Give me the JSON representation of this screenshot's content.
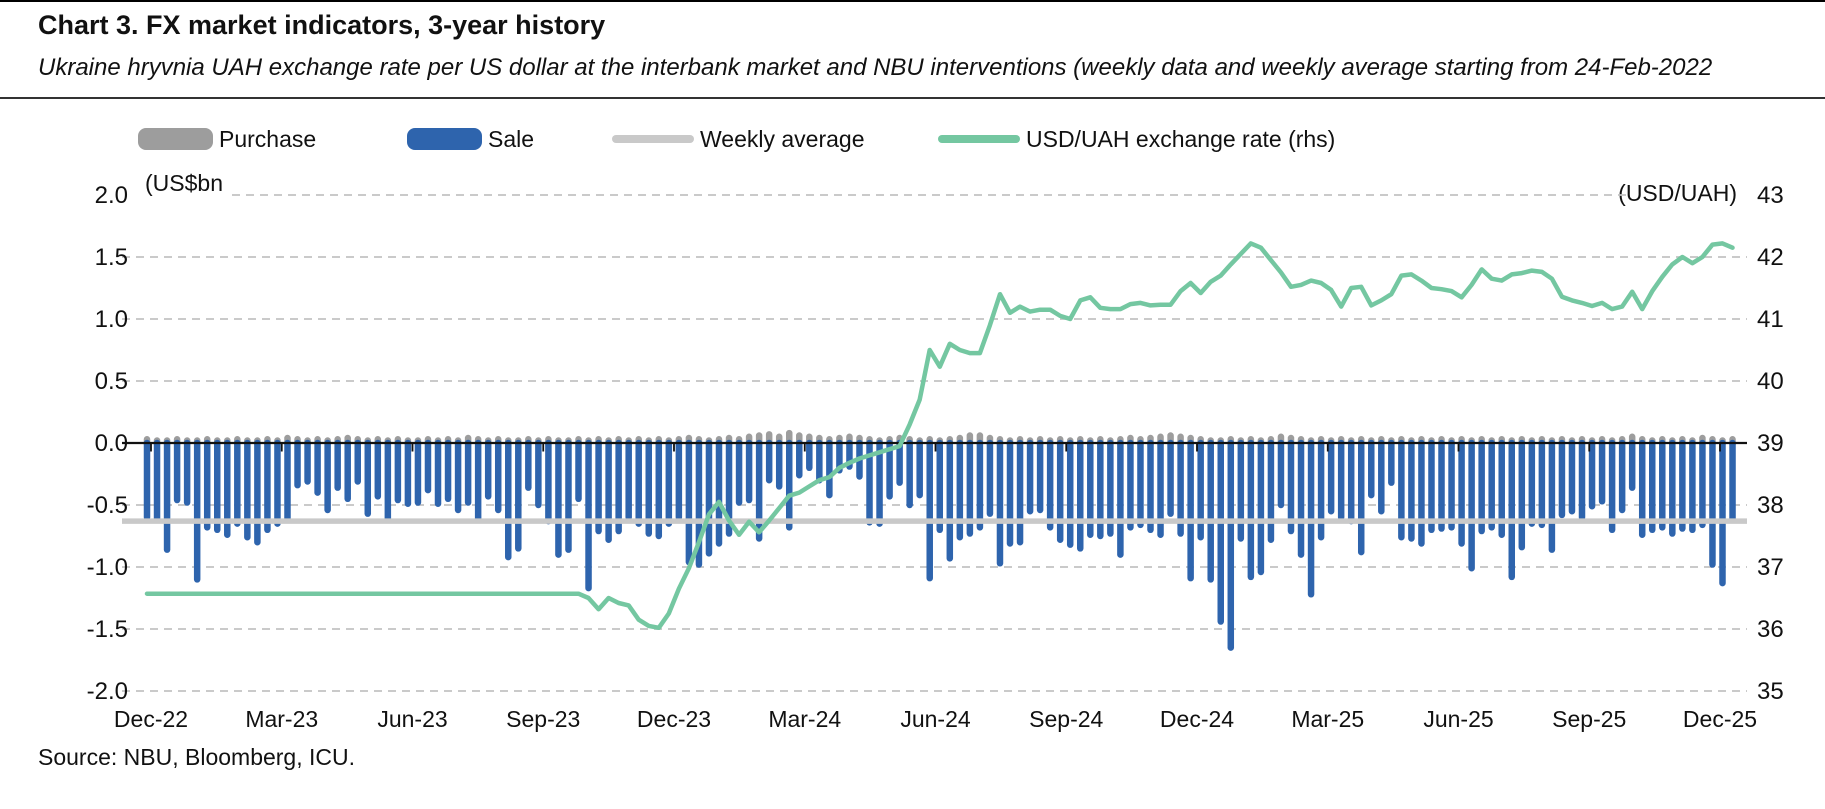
{
  "header": {
    "title": "Chart 3. FX market indicators, 3-year history",
    "subtitle": "Ukraine hryvnia UAH exchange rate per US dollar at the interbank market and NBU interventions (weekly data and weekly average starting from 24-Feb-2022"
  },
  "source": "Source: NBU, Bloomberg, ICU.",
  "legend": [
    {
      "label": "Purchase",
      "color": "#9d9d9d",
      "type": "bar"
    },
    {
      "label": "Sale",
      "color": "#2e64ad",
      "type": "bar"
    },
    {
      "label": "Weekly average",
      "color": "#c9c9c9",
      "type": "line"
    },
    {
      "label": "USD/UAH exchange rate (rhs)",
      "color": "#74c7a1",
      "type": "line"
    }
  ],
  "chart_data": {
    "type": "combo",
    "x_unit": "week",
    "x_start_label": "Dec-22",
    "x_end_label": "Dec-25",
    "x_quarter_labels": [
      "Dec-22",
      "Mar-23",
      "Jun-23",
      "Sep-23",
      "Dec-23",
      "Mar-24",
      "Jun-24",
      "Sep-24",
      "Dec-24",
      "Mar-25",
      "Jun-25",
      "Sep-25",
      "Dec-25"
    ],
    "grid": "horizontal-dashed",
    "left_axis": {
      "unit": "(US$bn",
      "min": -2.0,
      "max": 2.0,
      "ticks": [
        "2.0",
        "1.5",
        "1.0",
        "0.5",
        "0.0",
        "-0.5",
        "-1.0",
        "-1.5",
        "-2.0"
      ]
    },
    "right_axis": {
      "unit": "(USD/UAH)",
      "min": 35,
      "max": 43,
      "ticks": [
        "43",
        "42",
        "41",
        "40",
        "39",
        "38",
        "37",
        "36",
        "35"
      ]
    },
    "series": [
      {
        "name": "Purchase",
        "type": "bar",
        "axis": "left",
        "color": "#9d9d9d",
        "values": [
          0.03,
          0.02,
          0.02,
          0.03,
          0.02,
          0.02,
          0.03,
          0.02,
          0.02,
          0.03,
          0.02,
          0.02,
          0.03,
          0.02,
          0.04,
          0.03,
          0.02,
          0.03,
          0.02,
          0.03,
          0.04,
          0.03,
          0.02,
          0.03,
          0.02,
          0.03,
          0.02,
          0.02,
          0.03,
          0.02,
          0.03,
          0.02,
          0.04,
          0.03,
          0.02,
          0.03,
          0.02,
          0.02,
          0.03,
          0.02,
          0.03,
          0.02,
          0.02,
          0.03,
          0.02,
          0.03,
          0.02,
          0.03,
          0.02,
          0.03,
          0.02,
          0.03,
          0.02,
          0.03,
          0.04,
          0.03,
          0.02,
          0.03,
          0.04,
          0.03,
          0.05,
          0.06,
          0.07,
          0.05,
          0.08,
          0.06,
          0.05,
          0.04,
          0.03,
          0.04,
          0.05,
          0.04,
          0.03,
          0.02,
          0.03,
          0.04,
          0.03,
          0.02,
          0.03,
          0.02,
          0.03,
          0.04,
          0.06,
          0.06,
          0.04,
          0.03,
          0.02,
          0.03,
          0.02,
          0.03,
          0.02,
          0.03,
          0.02,
          0.03,
          0.02,
          0.03,
          0.02,
          0.03,
          0.04,
          0.03,
          0.04,
          0.05,
          0.06,
          0.05,
          0.04,
          0.03,
          0.02,
          0.02,
          0.03,
          0.02,
          0.03,
          0.02,
          0.03,
          0.05,
          0.04,
          0.03,
          0.02,
          0.03,
          0.02,
          0.03,
          0.02,
          0.03,
          0.02,
          0.03,
          0.02,
          0.03,
          0.02,
          0.03,
          0.02,
          0.03,
          0.02,
          0.03,
          0.02,
          0.03,
          0.02,
          0.03,
          0.02,
          0.03,
          0.02,
          0.03,
          0.02,
          0.03,
          0.02,
          0.03,
          0.02,
          0.03,
          0.02,
          0.03,
          0.05,
          0.03,
          0.02,
          0.03,
          0.02,
          0.03,
          0.02,
          0.04,
          0.03,
          0.02,
          0.03
        ]
      },
      {
        "name": "Sale",
        "type": "bar",
        "axis": "left",
        "color": "#2e64ad",
        "values": [
          -0.6,
          -0.62,
          -0.86,
          -0.46,
          -0.48,
          -1.1,
          -0.68,
          -0.7,
          -0.74,
          -0.65,
          -0.76,
          -0.8,
          -0.7,
          -0.65,
          -0.62,
          -0.34,
          -0.31,
          -0.4,
          -0.54,
          -0.36,
          -0.45,
          -0.31,
          -0.57,
          -0.43,
          -0.61,
          -0.46,
          -0.49,
          -0.48,
          -0.38,
          -0.49,
          -0.45,
          -0.54,
          -0.48,
          -0.62,
          -0.43,
          -0.54,
          -0.92,
          -0.85,
          -0.36,
          -0.5,
          -0.63,
          -0.9,
          -0.86,
          -0.45,
          -1.17,
          -0.71,
          -0.78,
          -0.71,
          -0.6,
          -0.65,
          -0.73,
          -0.75,
          -0.65,
          -0.6,
          -0.96,
          -0.98,
          -0.89,
          -0.81,
          -0.73,
          -0.48,
          -0.46,
          -0.77,
          -0.3,
          -0.35,
          -0.68,
          -0.26,
          -0.2,
          -0.3,
          -0.42,
          -0.22,
          -0.19,
          -0.27,
          -0.64,
          -0.65,
          -0.43,
          -0.32,
          -0.5,
          -0.42,
          -1.09,
          -0.7,
          -0.93,
          -0.76,
          -0.73,
          -0.68,
          -0.57,
          -0.97,
          -0.81,
          -0.8,
          -0.55,
          -0.54,
          -0.68,
          -0.78,
          -0.82,
          -0.85,
          -0.74,
          -0.75,
          -0.73,
          -0.9,
          -0.68,
          -0.66,
          -0.7,
          -0.74,
          -0.57,
          -0.73,
          -1.09,
          -0.76,
          -1.1,
          -1.44,
          -1.65,
          -0.77,
          -1.08,
          -1.04,
          -0.78,
          -0.5,
          -0.71,
          -0.9,
          -1.22,
          -0.76,
          -0.55,
          -0.6,
          -0.63,
          -0.88,
          -0.42,
          -0.55,
          -0.32,
          -0.76,
          -0.77,
          -0.81,
          -0.7,
          -0.69,
          -0.68,
          -0.81,
          -1.01,
          -0.71,
          -0.68,
          -0.74,
          -1.08,
          -0.84,
          -0.65,
          -0.66,
          -0.86,
          -0.58,
          -0.55,
          -0.6,
          -0.51,
          -0.47,
          -0.7,
          -0.54,
          -0.36,
          -0.74,
          -0.7,
          -0.68,
          -0.73,
          -0.69,
          -0.7,
          -0.66,
          -0.98,
          -1.13,
          -0.61
        ]
      },
      {
        "name": "Weekly average",
        "type": "line",
        "axis": "left",
        "color": "#c9c9c9",
        "constant_value": -0.63
      },
      {
        "name": "USD/UAH exchange rate (rhs)",
        "type": "line",
        "axis": "right",
        "color": "#74c7a1",
        "values": [
          36.57,
          36.57,
          36.57,
          36.57,
          36.57,
          36.57,
          36.57,
          36.57,
          36.57,
          36.57,
          36.57,
          36.57,
          36.57,
          36.57,
          36.57,
          36.57,
          36.57,
          36.57,
          36.57,
          36.57,
          36.57,
          36.57,
          36.57,
          36.57,
          36.57,
          36.57,
          36.57,
          36.57,
          36.57,
          36.57,
          36.57,
          36.57,
          36.57,
          36.57,
          36.57,
          36.57,
          36.57,
          36.57,
          36.57,
          36.57,
          36.57,
          36.57,
          36.57,
          36.57,
          36.5,
          36.32,
          36.5,
          36.42,
          36.38,
          36.15,
          36.05,
          36.02,
          36.25,
          36.65,
          36.98,
          37.4,
          37.85,
          38.05,
          37.75,
          37.52,
          37.73,
          37.56,
          37.75,
          37.95,
          38.15,
          38.2,
          38.3,
          38.4,
          38.45,
          38.6,
          38.68,
          38.75,
          38.8,
          38.85,
          38.9,
          38.95,
          39.3,
          39.7,
          40.5,
          40.23,
          40.6,
          40.5,
          40.45,
          40.45,
          40.9,
          41.4,
          41.1,
          41.2,
          41.12,
          41.15,
          41.15,
          41.05,
          41.0,
          41.3,
          41.35,
          41.18,
          41.16,
          41.16,
          41.24,
          41.26,
          41.22,
          41.23,
          41.23,
          41.45,
          41.58,
          41.42,
          41.6,
          41.7,
          41.88,
          42.05,
          42.22,
          42.15,
          41.95,
          41.75,
          41.52,
          41.55,
          41.62,
          41.58,
          41.47,
          41.2,
          41.5,
          41.52,
          41.22,
          41.3,
          41.4,
          41.7,
          41.72,
          41.62,
          41.5,
          41.48,
          41.45,
          41.35,
          41.55,
          41.8,
          41.65,
          41.62,
          41.72,
          41.74,
          41.78,
          41.76,
          41.65,
          41.36,
          41.3,
          41.26,
          41.21,
          41.26,
          41.16,
          41.2,
          41.44,
          41.16,
          41.45,
          41.68,
          41.88,
          42.0,
          41.9,
          42.0,
          42.2,
          42.22,
          42.15
        ]
      }
    ]
  }
}
